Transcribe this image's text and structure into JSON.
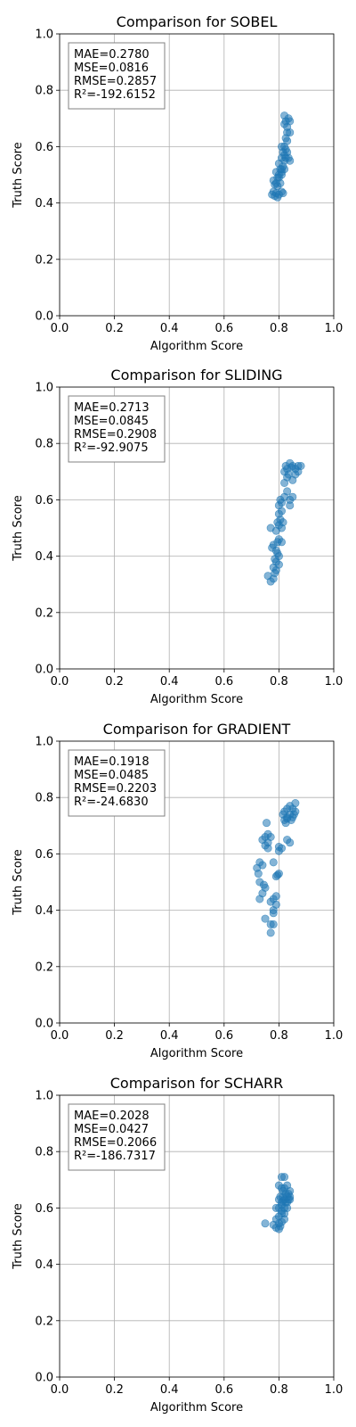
{
  "chart_data": [
    {
      "type": "scatter",
      "title": "Comparison for SOBEL",
      "xlabel": "Algorithm Score",
      "ylabel": "Truth Score",
      "xlim": [
        0,
        1
      ],
      "ylim": [
        0,
        1
      ],
      "xticks": [
        "0.0",
        "0.2",
        "0.4",
        "0.6",
        "0.8",
        "1.0"
      ],
      "yticks": [
        "0.0",
        "0.2",
        "0.4",
        "0.6",
        "0.8",
        "1.0"
      ],
      "grid": true,
      "stats": [
        "MAE=0.2780",
        "MSE=0.0816",
        "RMSE=0.2857",
        "R²=-192.6152"
      ],
      "points": [
        [
          0.775,
          0.43
        ],
        [
          0.78,
          0.44
        ],
        [
          0.785,
          0.425
        ],
        [
          0.79,
          0.435
        ],
        [
          0.795,
          0.42
        ],
        [
          0.8,
          0.43
        ],
        [
          0.81,
          0.44
        ],
        [
          0.815,
          0.435
        ],
        [
          0.78,
          0.48
        ],
        [
          0.79,
          0.47
        ],
        [
          0.795,
          0.49
        ],
        [
          0.8,
          0.5
        ],
        [
          0.79,
          0.51
        ],
        [
          0.805,
          0.52
        ],
        [
          0.81,
          0.5
        ],
        [
          0.815,
          0.53
        ],
        [
          0.8,
          0.49
        ],
        [
          0.82,
          0.55
        ],
        [
          0.81,
          0.56
        ],
        [
          0.815,
          0.58
        ],
        [
          0.82,
          0.57
        ],
        [
          0.825,
          0.56
        ],
        [
          0.83,
          0.58
        ],
        [
          0.835,
          0.56
        ],
        [
          0.84,
          0.55
        ],
        [
          0.81,
          0.6
        ],
        [
          0.82,
          0.6
        ],
        [
          0.825,
          0.59
        ],
        [
          0.83,
          0.62
        ],
        [
          0.825,
          0.63
        ],
        [
          0.82,
          0.68
        ],
        [
          0.825,
          0.69
        ],
        [
          0.83,
          0.67
        ],
        [
          0.835,
          0.7
        ],
        [
          0.84,
          0.69
        ],
        [
          0.82,
          0.71
        ],
        [
          0.83,
          0.65
        ],
        [
          0.84,
          0.65
        ],
        [
          0.81,
          0.52
        ],
        [
          0.8,
          0.54
        ],
        [
          0.795,
          0.46
        ],
        [
          0.785,
          0.465
        ],
        [
          0.81,
          0.51
        ],
        [
          0.82,
          0.52
        ],
        [
          0.805,
          0.47
        ]
      ]
    },
    {
      "type": "scatter",
      "title": "Comparison for SLIDING",
      "xlabel": "Algorithm Score",
      "ylabel": "Truth Score",
      "xlim": [
        0,
        1
      ],
      "ylim": [
        0,
        1
      ],
      "xticks": [
        "0.0",
        "0.2",
        "0.4",
        "0.6",
        "0.8",
        "1.0"
      ],
      "yticks": [
        "0.0",
        "0.2",
        "0.4",
        "0.6",
        "0.8",
        "1.0"
      ],
      "grid": true,
      "stats": [
        "MAE=0.2713",
        "MSE=0.0845",
        "RMSE=0.2908",
        "R²=-92.9075"
      ],
      "points": [
        [
          0.76,
          0.33
        ],
        [
          0.77,
          0.31
        ],
        [
          0.78,
          0.32
        ],
        [
          0.785,
          0.34
        ],
        [
          0.78,
          0.36
        ],
        [
          0.79,
          0.35
        ],
        [
          0.79,
          0.38
        ],
        [
          0.8,
          0.37
        ],
        [
          0.785,
          0.39
        ],
        [
          0.795,
          0.41
        ],
        [
          0.8,
          0.4
        ],
        [
          0.775,
          0.43
        ],
        [
          0.78,
          0.44
        ],
        [
          0.79,
          0.42
        ],
        [
          0.795,
          0.45
        ],
        [
          0.8,
          0.46
        ],
        [
          0.81,
          0.45
        ],
        [
          0.77,
          0.5
        ],
        [
          0.79,
          0.49
        ],
        [
          0.8,
          0.51
        ],
        [
          0.81,
          0.5
        ],
        [
          0.795,
          0.52
        ],
        [
          0.805,
          0.53
        ],
        [
          0.815,
          0.52
        ],
        [
          0.8,
          0.55
        ],
        [
          0.81,
          0.56
        ],
        [
          0.8,
          0.58
        ],
        [
          0.805,
          0.6
        ],
        [
          0.81,
          0.59
        ],
        [
          0.82,
          0.61
        ],
        [
          0.83,
          0.63
        ],
        [
          0.84,
          0.6
        ],
        [
          0.85,
          0.61
        ],
        [
          0.84,
          0.58
        ],
        [
          0.82,
          0.66
        ],
        [
          0.83,
          0.68
        ],
        [
          0.85,
          0.67
        ],
        [
          0.86,
          0.69
        ],
        [
          0.87,
          0.7
        ],
        [
          0.88,
          0.72
        ],
        [
          0.87,
          0.72
        ],
        [
          0.82,
          0.7
        ],
        [
          0.83,
          0.71
        ],
        [
          0.84,
          0.73
        ],
        [
          0.85,
          0.72
        ],
        [
          0.825,
          0.72
        ],
        [
          0.835,
          0.69
        ],
        [
          0.845,
          0.715
        ],
        [
          0.86,
          0.71
        ]
      ]
    },
    {
      "type": "scatter",
      "title": "Comparison for GRADIENT",
      "xlabel": "Algorithm Score",
      "ylabel": "Truth Score",
      "xlim": [
        0,
        1
      ],
      "ylim": [
        0,
        1
      ],
      "xticks": [
        "0.0",
        "0.2",
        "0.4",
        "0.6",
        "0.8",
        "1.0"
      ],
      "yticks": [
        "0.0",
        "0.2",
        "0.4",
        "0.6",
        "0.8",
        "1.0"
      ],
      "grid": true,
      "stats": [
        "MAE=0.1918",
        "MSE=0.0485",
        "RMSE=0.2203",
        "R²=-24.6830"
      ],
      "points": [
        [
          0.77,
          0.32
        ],
        [
          0.77,
          0.35
        ],
        [
          0.78,
          0.35
        ],
        [
          0.75,
          0.37
        ],
        [
          0.78,
          0.39
        ],
        [
          0.78,
          0.4
        ],
        [
          0.79,
          0.42
        ],
        [
          0.77,
          0.43
        ],
        [
          0.78,
          0.44
        ],
        [
          0.79,
          0.45
        ],
        [
          0.73,
          0.44
        ],
        [
          0.74,
          0.46
        ],
        [
          0.73,
          0.5
        ],
        [
          0.75,
          0.48
        ],
        [
          0.745,
          0.49
        ],
        [
          0.725,
          0.53
        ],
        [
          0.72,
          0.55
        ],
        [
          0.73,
          0.57
        ],
        [
          0.74,
          0.56
        ],
        [
          0.79,
          0.52
        ],
        [
          0.8,
          0.53
        ],
        [
          0.795,
          0.525
        ],
        [
          0.78,
          0.57
        ],
        [
          0.76,
          0.62
        ],
        [
          0.75,
          0.63
        ],
        [
          0.74,
          0.65
        ],
        [
          0.75,
          0.66
        ],
        [
          0.76,
          0.67
        ],
        [
          0.77,
          0.66
        ],
        [
          0.755,
          0.71
        ],
        [
          0.76,
          0.64
        ],
        [
          0.8,
          0.61
        ],
        [
          0.81,
          0.62
        ],
        [
          0.8,
          0.625
        ],
        [
          0.83,
          0.65
        ],
        [
          0.84,
          0.64
        ],
        [
          0.82,
          0.72
        ],
        [
          0.83,
          0.73
        ],
        [
          0.84,
          0.74
        ],
        [
          0.85,
          0.73
        ],
        [
          0.86,
          0.75
        ],
        [
          0.86,
          0.78
        ],
        [
          0.85,
          0.76
        ],
        [
          0.84,
          0.77
        ],
        [
          0.83,
          0.76
        ],
        [
          0.82,
          0.75
        ],
        [
          0.815,
          0.74
        ],
        [
          0.825,
          0.71
        ],
        [
          0.83,
          0.725
        ],
        [
          0.845,
          0.72
        ],
        [
          0.855,
          0.74
        ]
      ]
    },
    {
      "type": "scatter",
      "title": "Comparison for SCHARR",
      "xlabel": "Algorithm Score",
      "ylabel": "Truth Score",
      "xlim": [
        0,
        1
      ],
      "ylim": [
        0,
        1
      ],
      "xticks": [
        "0.0",
        "0.2",
        "0.4",
        "0.6",
        "0.8",
        "1.0"
      ],
      "yticks": [
        "0.0",
        "0.2",
        "0.4",
        "0.6",
        "0.8",
        "1.0"
      ],
      "grid": true,
      "stats": [
        "MAE=0.2028",
        "MSE=0.0427",
        "RMSE=0.2066",
        "R²=-186.7317"
      ],
      "points": [
        [
          0.75,
          0.545
        ],
        [
          0.78,
          0.54
        ],
        [
          0.79,
          0.53
        ],
        [
          0.8,
          0.525
        ],
        [
          0.81,
          0.55
        ],
        [
          0.82,
          0.56
        ],
        [
          0.79,
          0.56
        ],
        [
          0.8,
          0.57
        ],
        [
          0.81,
          0.58
        ],
        [
          0.8,
          0.6
        ],
        [
          0.79,
          0.6
        ],
        [
          0.81,
          0.61
        ],
        [
          0.82,
          0.6
        ],
        [
          0.83,
          0.62
        ],
        [
          0.84,
          0.64
        ],
        [
          0.835,
          0.63
        ],
        [
          0.825,
          0.65
        ],
        [
          0.815,
          0.66
        ],
        [
          0.805,
          0.64
        ],
        [
          0.8,
          0.63
        ],
        [
          0.81,
          0.67
        ],
        [
          0.82,
          0.67
        ],
        [
          0.83,
          0.68
        ],
        [
          0.84,
          0.66
        ],
        [
          0.8,
          0.68
        ],
        [
          0.81,
          0.71
        ],
        [
          0.82,
          0.71
        ],
        [
          0.825,
          0.62
        ],
        [
          0.815,
          0.625
        ],
        [
          0.81,
          0.59
        ],
        [
          0.82,
          0.58
        ],
        [
          0.83,
          0.6
        ],
        [
          0.835,
          0.65
        ],
        [
          0.8,
          0.545
        ],
        [
          0.805,
          0.535
        ],
        [
          0.81,
          0.62
        ],
        [
          0.82,
          0.63
        ],
        [
          0.83,
          0.64
        ],
        [
          0.84,
          0.63
        ],
        [
          0.815,
          0.64
        ]
      ]
    }
  ]
}
